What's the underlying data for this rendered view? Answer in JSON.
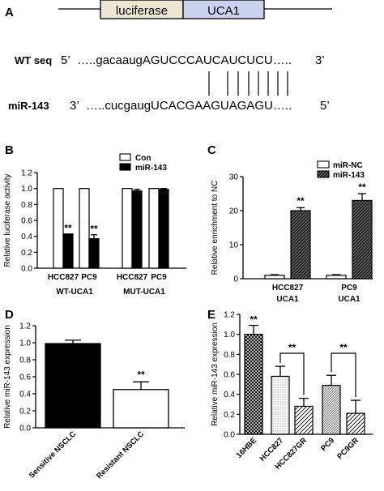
{
  "colors": {
    "construct_left": "#ece6d2",
    "construct_right": "#c9d3ee",
    "bar_fill": "#000000",
    "bar_open": "#ffffff"
  },
  "panel_a": {
    "label": "A",
    "construct": {
      "left_label": "luciferase",
      "right_label": "UCA1"
    },
    "wt": {
      "name": "WT seq",
      "start": "5’",
      "seq": "…..gacaaugAGUCCCAUCAUCUCU…..",
      "end": "3’"
    },
    "mir": {
      "name": "miR-143",
      "start": "3’",
      "seq": "…..cucgaugUCACGAAGUAGAGU…..",
      "end": "5’"
    },
    "pair_line_count": 8
  },
  "chart_data": [
    {
      "panel": "B",
      "type": "bar",
      "ylabel": "Relative luciferase activity",
      "ylim": [
        0,
        1.2
      ],
      "yticks": [
        "0.0",
        "0.2",
        "0.4",
        "0.6",
        "0.8",
        "1.0",
        "1.2"
      ],
      "categories": [
        "HCC827",
        "PC9",
        "HCC827",
        "PC9"
      ],
      "groups": [
        "WT-UCA1",
        "MUT-UCA1"
      ],
      "series": [
        {
          "name": "Con",
          "values": [
            1.0,
            1.0,
            1.0,
            1.0
          ],
          "style": "open"
        },
        {
          "name": "miR-143",
          "values": [
            0.43,
            0.37,
            0.97,
            0.99
          ],
          "errors": [
            0.0,
            0.05,
            0.02,
            0.01
          ],
          "style": "filled"
        }
      ],
      "annotations": [
        "**",
        "**"
      ],
      "legend": "top-right"
    },
    {
      "panel": "C",
      "type": "bar",
      "ylabel": "Relative enrichment to NC",
      "ylim": [
        0,
        30
      ],
      "yticks": [
        "0",
        "10",
        "20",
        "30"
      ],
      "categories": [
        "HCC827",
        "PC9"
      ],
      "category_sublabels": [
        "UCA1",
        "UCA1"
      ],
      "series": [
        {
          "name": "miR-NC",
          "values": [
            1.0,
            1.0
          ],
          "errors": [
            0.2,
            0.2
          ],
          "style": "open"
        },
        {
          "name": "miR-143",
          "values": [
            20,
            23
          ],
          "errors": [
            0.9,
            2.0
          ],
          "style": "hatched"
        }
      ],
      "annotations": [
        "**",
        "**"
      ],
      "legend": "top-right"
    },
    {
      "panel": "D",
      "type": "bar",
      "ylabel": "Relative miR-143 expression",
      "ylim": [
        0,
        1.2
      ],
      "yticks": [
        "0.0",
        "0.2",
        "0.4",
        "0.6",
        "0.8",
        "1.0",
        "1.2"
      ],
      "categories": [
        "Sensitive NSCLC",
        "Resistant NSCLC"
      ],
      "values": [
        0.99,
        0.45
      ],
      "errors": [
        0.04,
        0.09
      ],
      "styles": [
        "filled",
        "open"
      ],
      "annotations": [
        "",
        "**"
      ]
    },
    {
      "panel": "E",
      "type": "bar",
      "ylabel": "Relative miR-143 expression",
      "ylim": [
        0,
        1.2
      ],
      "yticks": [
        "0.0",
        "0.2",
        "0.4",
        "0.6",
        "0.8",
        "1.0",
        "1.2"
      ],
      "categories": [
        "16HBE",
        "HCC827",
        "HCC827GR",
        "PC9",
        "PC9GR"
      ],
      "values": [
        1.0,
        0.58,
        0.28,
        0.49,
        0.21
      ],
      "errors": [
        0.09,
        0.1,
        0.08,
        0.1,
        0.13
      ],
      "styles": [
        "crosshatch",
        "dots",
        "diagonal",
        "dense",
        "diagonal"
      ],
      "annotations": [
        "**",
        "**",
        "**"
      ]
    }
  ]
}
